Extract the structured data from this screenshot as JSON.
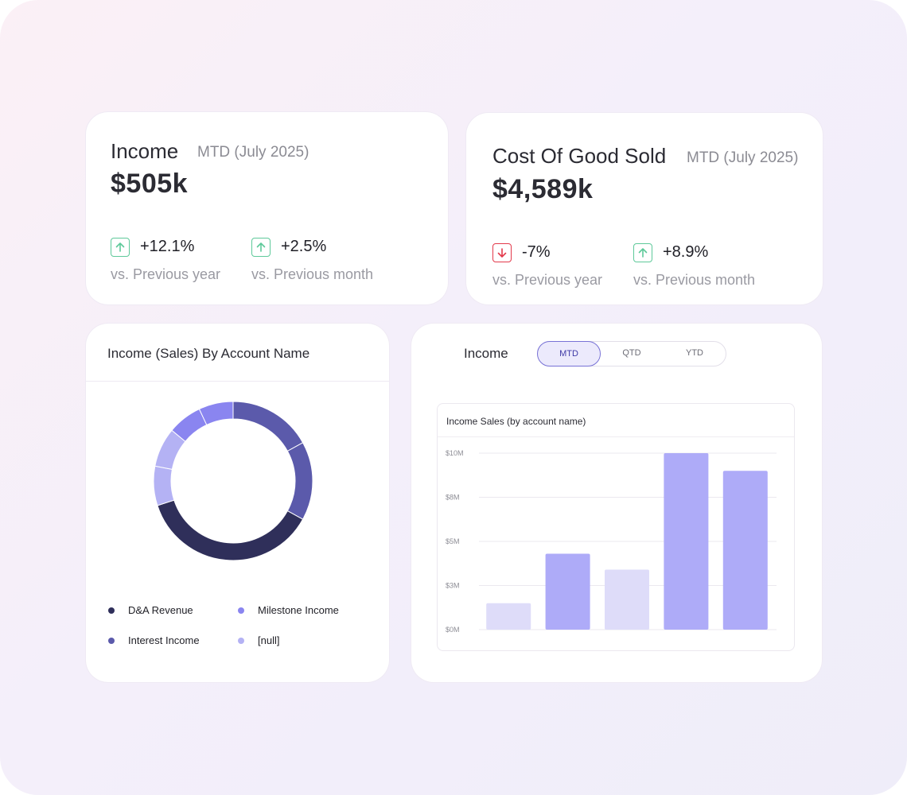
{
  "income_card": {
    "title": "Income",
    "period": "MTD (July 2025)",
    "value": "$505k",
    "trends": [
      {
        "direction": "up",
        "change": "+12.1%",
        "comparison": "vs. Previous year",
        "icon": "arrow-up-icon"
      },
      {
        "direction": "up",
        "change": "+2.5%",
        "comparison": "vs. Previous month",
        "icon": "arrow-up-icon"
      }
    ]
  },
  "cogs_card": {
    "title": "Cost Of Good Sold",
    "period": "MTD (July 2025)",
    "value": "$4,589k",
    "trends": [
      {
        "direction": "down",
        "change": "-7%",
        "comparison": "vs. Previous year",
        "icon": "arrow-down-icon"
      },
      {
        "direction": "up",
        "change": "+8.9%",
        "comparison": "vs. Previous month",
        "icon": "arrow-up-icon"
      }
    ]
  },
  "donut_card": {
    "title": "Income (Sales) By Account Name",
    "legend": [
      {
        "label": "D&A Revenue",
        "color": "#2f2f5a"
      },
      {
        "label": "Milestone Income",
        "color": "#8a85f0"
      },
      {
        "label": "Interest Income",
        "color": "#5b5aab"
      },
      {
        "label": "[null]",
        "color": "#b4b2f4"
      }
    ]
  },
  "bar_card": {
    "title": "Income",
    "tabs": [
      {
        "label": "MTD",
        "active": true
      },
      {
        "label": "QTD",
        "active": false
      },
      {
        "label": "YTD",
        "active": false
      }
    ],
    "chart_title": "Income Sales (by account name)"
  },
  "colors": {
    "up": "#5ec99a",
    "down": "#e3394b",
    "bar_dark": "#aeabf8",
    "bar_light": "#dedcf9"
  },
  "chart_data": [
    {
      "type": "pie",
      "title": "Income (Sales) By Account Name",
      "donut": true,
      "slices": [
        {
          "label": "D&A Revenue",
          "value": 37,
          "color": "#2f2f5a"
        },
        {
          "label": "Interest Income",
          "value": 33,
          "color": "#5b5aab"
        },
        {
          "label": "Milestone Income",
          "value": 14,
          "color": "#8a85f0"
        },
        {
          "label": "[null]",
          "value": 16,
          "color": "#b4b2f4"
        }
      ],
      "segments": [
        {
          "label": "Interest Income",
          "value": 17,
          "color": "#5b5aab"
        },
        {
          "label": "Interest Income",
          "value": 16,
          "color": "#5b5aab"
        },
        {
          "label": "D&A Revenue",
          "value": 37,
          "color": "#2f2f5a"
        },
        {
          "label": "[null]",
          "value": 8,
          "color": "#b4b2f4"
        },
        {
          "label": "[null]",
          "value": 8,
          "color": "#b4b2f4"
        },
        {
          "label": "Milestone Income",
          "value": 7,
          "color": "#8a85f0"
        },
        {
          "label": "Milestone Income",
          "value": 7,
          "color": "#8a85f0"
        }
      ]
    },
    {
      "type": "bar",
      "title": "Income Sales (by account name)",
      "values": [
        1.5,
        4.3,
        3.4,
        10,
        9
      ],
      "colors": [
        "#dedcf9",
        "#aeabf8",
        "#dedcf9",
        "#aeabf8",
        "#aeabf8"
      ],
      "ytick_labels": [
        "$0M",
        "$3M",
        "$5M",
        "$8M",
        "$10M"
      ],
      "ylim": [
        0,
        10
      ],
      "grid": true
    }
  ]
}
